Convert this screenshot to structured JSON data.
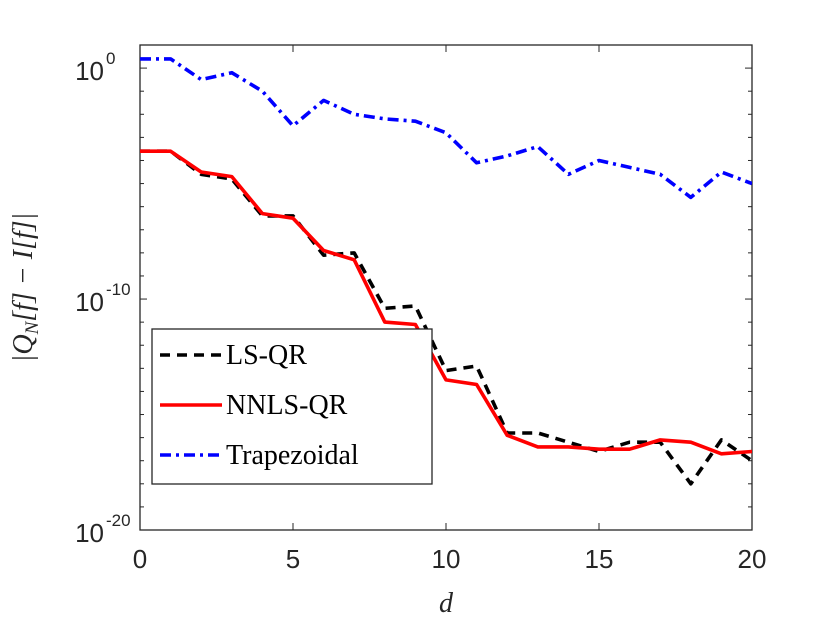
{
  "chart_data": {
    "type": "line",
    "xlabel": "d",
    "ylabel": "|Q_N[f] − I[f]|",
    "ylabel_parts": [
      "|Q",
      "N",
      "[f] − I[f]|"
    ],
    "xlim": [
      0,
      20
    ],
    "ylim_log10": [
      -20,
      1
    ],
    "y_scale": "log",
    "grid": false,
    "legend_position": "lower-left",
    "x_ticks": [
      "0",
      "5",
      "10",
      "15",
      "20"
    ],
    "y_ticks": [
      {
        "base": "10",
        "exp": "0"
      },
      {
        "base": "10",
        "exp": "-10"
      },
      {
        "base": "10",
        "exp": "-20"
      }
    ],
    "x": [
      0,
      1,
      2,
      3,
      4,
      5,
      6,
      7,
      8,
      9,
      10,
      11,
      12,
      13,
      14,
      15,
      16,
      17,
      18,
      19,
      20
    ],
    "series": [
      {
        "name": "LS-QR",
        "color": "#000000",
        "style": "dashed",
        "log10_values": [
          -3.6,
          -3.6,
          -4.6,
          -4.8,
          -6.4,
          -6.4,
          -8.1,
          -8.0,
          -10.4,
          -10.3,
          -13.1,
          -12.9,
          -15.8,
          -15.8,
          -16.2,
          -16.6,
          -16.2,
          -16.2,
          -18.0,
          -16.1,
          -17.0
        ]
      },
      {
        "name": "NNLS-QR",
        "color": "#ff0000",
        "style": "solid",
        "log10_values": [
          -3.6,
          -3.6,
          -4.5,
          -4.7,
          -6.3,
          -6.5,
          -7.9,
          -8.3,
          -11.0,
          -11.1,
          -13.5,
          -13.7,
          -15.9,
          -16.4,
          -16.4,
          -16.5,
          -16.5,
          -16.1,
          -16.2,
          -16.7,
          -16.6
        ]
      },
      {
        "name": "Trapezoidal",
        "color": "#0000ff",
        "style": "dashdot",
        "log10_values": [
          0.4,
          0.4,
          -0.5,
          -0.2,
          -1.0,
          -2.5,
          -1.4,
          -2.0,
          -2.2,
          -2.3,
          -2.8,
          -4.1,
          -3.8,
          -3.4,
          -4.6,
          -4.0,
          -4.3,
          -4.6,
          -5.6,
          -4.5,
          -5.0
        ]
      }
    ]
  }
}
